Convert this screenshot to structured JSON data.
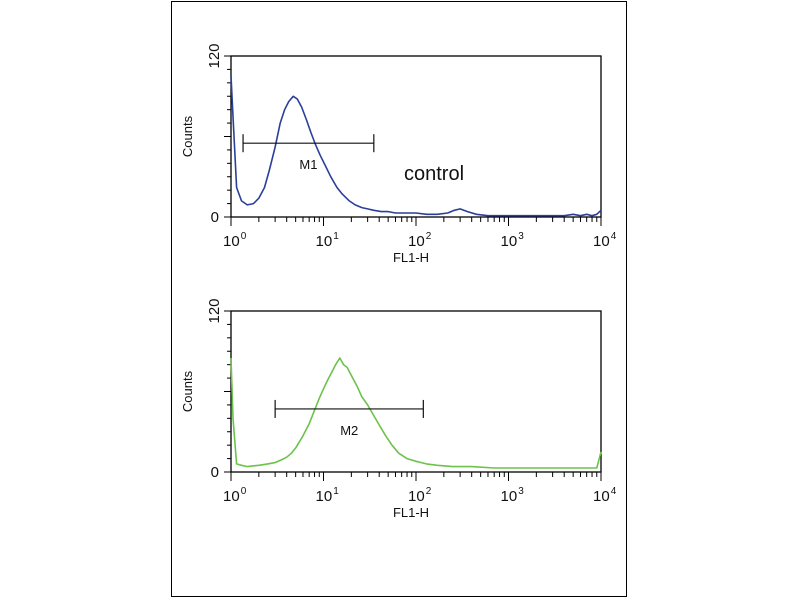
{
  "chart_data": [
    {
      "type": "line",
      "subtype": "flow-cytometry-histogram",
      "xlabel": "FL1-H",
      "ylabel": "Counts",
      "xscale": "log",
      "xlim": [
        1,
        10000
      ],
      "ylim": [
        0,
        120
      ],
      "x_ticks": [
        {
          "base": "10",
          "exp": "0"
        },
        {
          "base": "10",
          "exp": "1"
        },
        {
          "base": "10",
          "exp": "2"
        },
        {
          "base": "10",
          "exp": "3"
        },
        {
          "base": "10",
          "exp": "4"
        }
      ],
      "y_ticks": [
        "0",
        "120"
      ],
      "line_color": "#2a3f9a",
      "annotation": "control",
      "gate": {
        "label": "M1",
        "x_start": 1.35,
        "x_end": 35,
        "y": 55
      },
      "series": [
        {
          "x": [
            1,
            1.05,
            1.15,
            1.3,
            1.5,
            1.75,
            2,
            2.3,
            2.6,
            3,
            3.4,
            3.8,
            4.2,
            4.7,
            5.2,
            5.8,
            6.5,
            7.3,
            8.2,
            9.2,
            10.5,
            12,
            14,
            16,
            19,
            22,
            26,
            30,
            35,
            42,
            50,
            60,
            75,
            100,
            130,
            170,
            220,
            260,
            300,
            360,
            450,
            600,
            800,
            1000,
            1500,
            2000,
            3000,
            4000,
            5000,
            6000,
            7000,
            8000,
            9000,
            10000
          ],
          "y": [
            105,
            75,
            22,
            12,
            9,
            10,
            14,
            22,
            35,
            52,
            70,
            80,
            86,
            90,
            88,
            82,
            73,
            63,
            54,
            46,
            38,
            30,
            22,
            17,
            12,
            9,
            7,
            6,
            5,
            4,
            4,
            3,
            3,
            3,
            2,
            2,
            3,
            5,
            6,
            4,
            2,
            1,
            1,
            1,
            1,
            1,
            1,
            1,
            2,
            1,
            2,
            1,
            2,
            5
          ]
        }
      ]
    },
    {
      "type": "line",
      "subtype": "flow-cytometry-histogram",
      "xlabel": "FL1-H",
      "ylabel": "Counts",
      "xscale": "log",
      "xlim": [
        1,
        10000
      ],
      "ylim": [
        0,
        120
      ],
      "x_ticks": [
        {
          "base": "10",
          "exp": "0"
        },
        {
          "base": "10",
          "exp": "1"
        },
        {
          "base": "10",
          "exp": "2"
        },
        {
          "base": "10",
          "exp": "3"
        },
        {
          "base": "10",
          "exp": "4"
        }
      ],
      "y_ticks": [
        "0",
        "120"
      ],
      "line_color": "#6cc34a",
      "gate": {
        "label": "M2",
        "x_start": 3,
        "x_end": 120,
        "y": 47
      },
      "series": [
        {
          "x": [
            1,
            1.05,
            1.15,
            1.3,
            1.5,
            2,
            2.5,
            3,
            3.5,
            4,
            4.5,
            5,
            6,
            7,
            8,
            9,
            10,
            11,
            12,
            13.5,
            15,
            16.5,
            18,
            20,
            23,
            26,
            30,
            35,
            40,
            47,
            55,
            65,
            80,
            100,
            130,
            170,
            250,
            400,
            700,
            1000,
            2000,
            4000,
            7000,
            9000,
            10000
          ],
          "y": [
            85,
            40,
            6,
            5,
            4,
            5,
            6,
            7,
            9,
            11,
            14,
            18,
            27,
            36,
            46,
            55,
            62,
            68,
            73,
            80,
            85,
            80,
            78,
            72,
            64,
            56,
            50,
            42,
            35,
            27,
            20,
            14,
            10,
            8,
            6,
            5,
            4,
            4,
            3,
            3,
            3,
            3,
            3,
            3,
            15
          ]
        }
      ]
    }
  ]
}
